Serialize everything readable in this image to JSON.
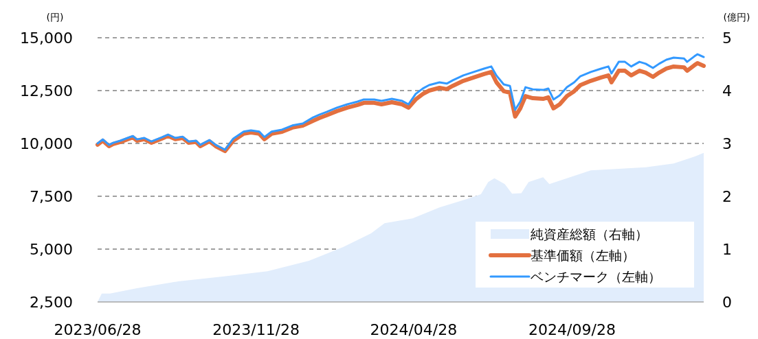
{
  "chart_data": {
    "type": "line",
    "ylabel": "(円)",
    "y2label": "(億円)",
    "xlim": [
      "2023-06-28",
      "2025-02-02"
    ],
    "xticks": [
      {
        "value": "2023-06-28",
        "label": "2023/06/28"
      },
      {
        "value": "2023-11-28",
        "label": "2023/11/28"
      },
      {
        "value": "2024-04-28",
        "label": "2024/04/28"
      },
      {
        "value": "2024-09-28",
        "label": "2024/09/28"
      }
    ],
    "ylim": [
      2500,
      15000
    ],
    "yticks": [
      {
        "value": 2500,
        "label": "2,500"
      },
      {
        "value": 5000,
        "label": "5,000"
      },
      {
        "value": 7500,
        "label": "7,500"
      },
      {
        "value": 10000,
        "label": "10,000"
      },
      {
        "value": 12500,
        "label": "12,500"
      },
      {
        "value": 15000,
        "label": "15,000"
      }
    ],
    "y2lim": [
      0,
      5
    ],
    "y2ticks": [
      0,
      1,
      2,
      3,
      4,
      5
    ],
    "grid": "y",
    "legend": "bottom right",
    "series": [
      {
        "name": "純資産総額（右軸）",
        "type": "area",
        "axis": "y2",
        "color": "#e1edfc",
        "x": [
          "2023-06-28",
          "2023-07-02",
          "2023-07-10",
          "2023-08-05",
          "2023-09-14",
          "2023-10-31",
          "2023-12-09",
          "2024-01-18",
          "2024-02-20",
          "2024-03-18",
          "2024-03-31",
          "2024-04-27",
          "2024-05-23",
          "2024-06-19",
          "2024-07-02",
          "2024-07-09",
          "2024-07-15",
          "2024-07-25",
          "2024-08-01",
          "2024-08-10",
          "2024-08-17",
          "2024-08-31",
          "2024-09-06",
          "2024-09-26",
          "2024-10-16",
          "2024-11-12",
          "2024-12-08",
          "2025-01-04",
          "2025-01-24",
          "2025-02-02"
        ],
        "values": [
          0,
          0.16,
          0.16,
          0.26,
          0.39,
          0.49,
          0.58,
          0.78,
          1.04,
          1.3,
          1.49,
          1.58,
          1.79,
          1.95,
          2.04,
          2.27,
          2.34,
          2.23,
          2.05,
          2.06,
          2.27,
          2.36,
          2.23,
          2.36,
          2.49,
          2.52,
          2.55,
          2.62,
          2.75,
          2.82
        ]
      },
      {
        "name": "基準価額（左軸）",
        "type": "line",
        "color": "#e3703f",
        "x": [
          "2023-06-28",
          "2023-07-03",
          "2023-07-09",
          "2023-07-13",
          "2023-07-20",
          "2023-07-27",
          "2023-08-01",
          "2023-08-05",
          "2023-08-12",
          "2023-08-19",
          "2023-08-29",
          "2023-09-04",
          "2023-09-11",
          "2023-09-18",
          "2023-09-24",
          "2023-10-01",
          "2023-10-05",
          "2023-10-14",
          "2023-10-20",
          "2023-10-29",
          "2023-11-06",
          "2023-11-16",
          "2023-11-23",
          "2023-12-01",
          "2023-12-06",
          "2023-12-13",
          "2023-12-23",
          "2024-01-02",
          "2024-01-12",
          "2024-01-22",
          "2024-01-28",
          "2024-02-04",
          "2024-02-14",
          "2024-02-24",
          "2024-03-05",
          "2024-03-11",
          "2024-03-21",
          "2024-03-28",
          "2024-04-07",
          "2024-04-17",
          "2024-04-23",
          "2024-04-30",
          "2024-05-07",
          "2024-05-13",
          "2024-05-23",
          "2024-05-30",
          "2024-06-05",
          "2024-06-15",
          "2024-06-25",
          "2024-07-05",
          "2024-07-12",
          "2024-07-17",
          "2024-07-24",
          "2024-07-30",
          "2024-08-04",
          "2024-08-09",
          "2024-08-14",
          "2024-08-21",
          "2024-08-31",
          "2024-09-05",
          "2024-09-10",
          "2024-09-16",
          "2024-09-23",
          "2024-09-30",
          "2024-10-06",
          "2024-10-16",
          "2024-10-26",
          "2024-11-02",
          "2024-11-05",
          "2024-11-12",
          "2024-11-18",
          "2024-11-24",
          "2024-12-02",
          "2024-12-08",
          "2024-12-15",
          "2024-12-21",
          "2024-12-28",
          "2025-01-04",
          "2025-01-14",
          "2025-01-17",
          "2025-01-24",
          "2025-01-27",
          "2025-02-02"
        ],
        "values": [
          9940,
          10130,
          9870,
          9970,
          10070,
          10200,
          10290,
          10130,
          10200,
          10030,
          10230,
          10360,
          10200,
          10260,
          10030,
          10070,
          9870,
          10100,
          9870,
          9640,
          10130,
          10460,
          10520,
          10460,
          10200,
          10460,
          10550,
          10750,
          10840,
          11070,
          11200,
          11330,
          11530,
          11690,
          11820,
          11920,
          11920,
          11850,
          11950,
          11850,
          11690,
          12080,
          12340,
          12500,
          12630,
          12570,
          12730,
          12960,
          13120,
          13280,
          13380,
          12890,
          12470,
          12400,
          11270,
          11660,
          12240,
          12140,
          12110,
          12180,
          11660,
          11850,
          12240,
          12470,
          12760,
          12960,
          13120,
          13220,
          12890,
          13440,
          13440,
          13220,
          13440,
          13350,
          13150,
          13350,
          13540,
          13640,
          13600,
          13440,
          13700,
          13800,
          13670
        ]
      },
      {
        "name": "ベンチマーク（左軸）",
        "type": "line",
        "color": "#3399ff",
        "x": [
          "2023-06-28",
          "2023-07-03",
          "2023-07-09",
          "2023-07-13",
          "2023-07-20",
          "2023-07-27",
          "2023-08-01",
          "2023-08-05",
          "2023-08-12",
          "2023-08-19",
          "2023-08-29",
          "2023-09-04",
          "2023-09-11",
          "2023-09-18",
          "2023-09-24",
          "2023-10-01",
          "2023-10-05",
          "2023-10-14",
          "2023-10-20",
          "2023-10-29",
          "2023-11-06",
          "2023-11-16",
          "2023-11-23",
          "2023-12-01",
          "2023-12-06",
          "2023-12-13",
          "2023-12-23",
          "2024-01-02",
          "2024-01-12",
          "2024-01-22",
          "2024-01-28",
          "2024-02-04",
          "2024-02-14",
          "2024-02-24",
          "2024-03-05",
          "2024-03-11",
          "2024-03-21",
          "2024-03-28",
          "2024-04-07",
          "2024-04-17",
          "2024-04-23",
          "2024-04-30",
          "2024-05-07",
          "2024-05-13",
          "2024-05-23",
          "2024-05-30",
          "2024-06-05",
          "2024-06-15",
          "2024-06-25",
          "2024-07-05",
          "2024-07-12",
          "2024-07-17",
          "2024-07-24",
          "2024-07-30",
          "2024-08-04",
          "2024-08-09",
          "2024-08-14",
          "2024-08-21",
          "2024-08-31",
          "2024-09-05",
          "2024-09-10",
          "2024-09-16",
          "2024-09-23",
          "2024-09-30",
          "2024-10-06",
          "2024-10-16",
          "2024-10-26",
          "2024-11-02",
          "2024-11-05",
          "2024-11-12",
          "2024-11-18",
          "2024-11-24",
          "2024-12-02",
          "2024-12-08",
          "2024-12-15",
          "2024-12-21",
          "2024-12-28",
          "2025-01-04",
          "2025-01-14",
          "2025-01-17",
          "2025-01-24",
          "2025-01-27",
          "2025-02-02"
        ],
        "values": [
          10000,
          10190,
          9930,
          10030,
          10130,
          10260,
          10350,
          10190,
          10260,
          10090,
          10290,
          10420,
          10260,
          10320,
          10090,
          10130,
          9930,
          10160,
          9930,
          9700,
          10230,
          10560,
          10620,
          10560,
          10300,
          10560,
          10650,
          10850,
          10940,
          11230,
          11360,
          11490,
          11690,
          11850,
          11980,
          12080,
          12080,
          12010,
          12110,
          12010,
          11850,
          12340,
          12600,
          12760,
          12890,
          12830,
          12990,
          13220,
          13380,
          13540,
          13640,
          13210,
          12790,
          12720,
          11590,
          11980,
          12660,
          12560,
          12530,
          12600,
          12080,
          12270,
          12660,
          12890,
          13180,
          13380,
          13540,
          13640,
          13310,
          13860,
          13860,
          13640,
          13860,
          13770,
          13570,
          13770,
          13960,
          14060,
          14020,
          13860,
          14120,
          14220,
          14090
        ]
      }
    ]
  }
}
